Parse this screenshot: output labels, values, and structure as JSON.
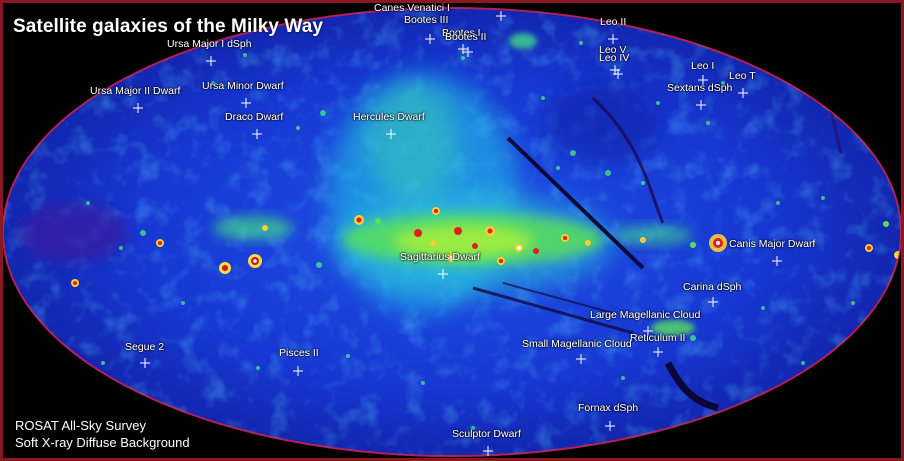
{
  "title": "Satellite galaxies of the Milky Way",
  "footer": {
    "line1": "ROSAT All-Sky Survey",
    "line2": "Soft X-ray Diffuse Background"
  },
  "marker_color": "#ffffff",
  "border_color": "#8a1822",
  "galaxies": [
    {
      "name": "Canes Venatici I"
    },
    {
      "name": "Bootes III"
    },
    {
      "name": "Bootes I"
    },
    {
      "name": "Bootes II"
    },
    {
      "name": "Ursa Major I dSph"
    },
    {
      "name": "Ursa Major II Dwarf"
    },
    {
      "name": "Ursa Minor Dwarf"
    },
    {
      "name": "Draco Dwarf"
    },
    {
      "name": "Hercules Dwarf"
    },
    {
      "name": "Leo II"
    },
    {
      "name": "Leo V"
    },
    {
      "name": "Leo IV"
    },
    {
      "name": "Leo I"
    },
    {
      "name": "Leo T"
    },
    {
      "name": "Sextans dSph"
    },
    {
      "name": "Canis Major Dwarf"
    },
    {
      "name": "Sagittarius Dwarf"
    },
    {
      "name": "Carina dSph"
    },
    {
      "name": "Large Magellanic Cloud"
    },
    {
      "name": "Reticulum II"
    },
    {
      "name": "Small Magellanic Cloud"
    },
    {
      "name": "Segue 2"
    },
    {
      "name": "Pisces II"
    },
    {
      "name": "Fornax dSph"
    },
    {
      "name": "Sculptor Dwarf"
    }
  ]
}
